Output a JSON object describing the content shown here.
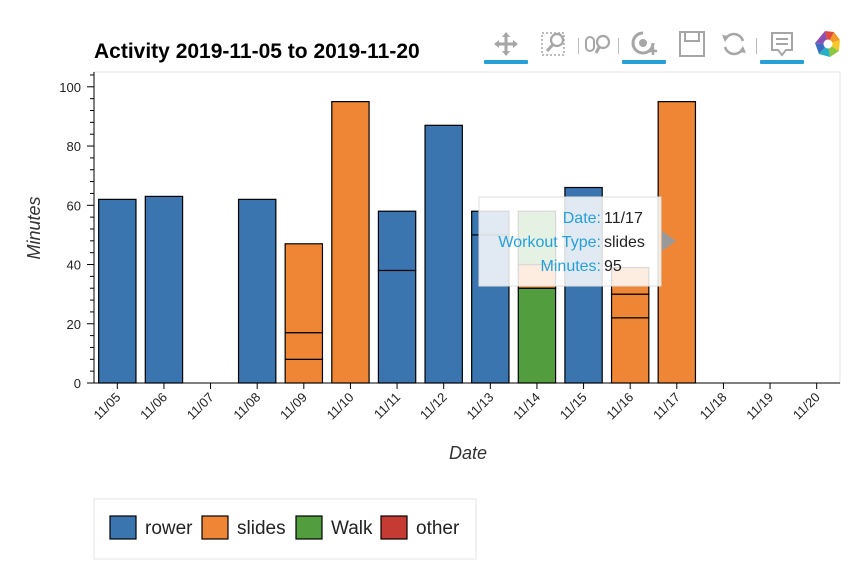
{
  "chart_data": {
    "type": "bar",
    "title": "Activity 2019-11-05 to 2019-11-20",
    "xlabel": "Date",
    "ylabel": "Minutes",
    "ylim": [
      0,
      105
    ],
    "yticks": [
      0,
      20,
      40,
      60,
      80,
      100
    ],
    "categories": [
      "11/05",
      "11/06",
      "11/07",
      "11/08",
      "11/09",
      "11/10",
      "11/11",
      "11/12",
      "11/13",
      "11/14",
      "11/15",
      "11/16",
      "11/17",
      "11/18",
      "11/19",
      "11/20"
    ],
    "stacked": true,
    "segments": [
      {
        "date": "11/05",
        "type": "rower",
        "start": 0,
        "end": 62
      },
      {
        "date": "11/06",
        "type": "rower",
        "start": 0,
        "end": 63
      },
      {
        "date": "11/08",
        "type": "rower",
        "start": 0,
        "end": 62
      },
      {
        "date": "11/09",
        "type": "slides",
        "start": 0,
        "end": 8
      },
      {
        "date": "11/09",
        "type": "slides",
        "start": 8,
        "end": 17
      },
      {
        "date": "11/09",
        "type": "slides",
        "start": 17,
        "end": 47
      },
      {
        "date": "11/10",
        "type": "slides",
        "start": 0,
        "end": 95
      },
      {
        "date": "11/11",
        "type": "rower",
        "start": 0,
        "end": 38
      },
      {
        "date": "11/11",
        "type": "rower",
        "start": 38,
        "end": 58
      },
      {
        "date": "11/12",
        "type": "rower",
        "start": 0,
        "end": 87
      },
      {
        "date": "11/13",
        "type": "rower",
        "start": 0,
        "end": 50
      },
      {
        "date": "11/13",
        "type": "rower",
        "start": 50,
        "end": 58
      },
      {
        "date": "11/14",
        "type": "Walk",
        "start": 0,
        "end": 32
      },
      {
        "date": "11/14",
        "type": "slides",
        "start": 32,
        "end": 40
      },
      {
        "date": "11/14",
        "type": "Walk",
        "start": 40,
        "end": 58
      },
      {
        "date": "11/15",
        "type": "rower",
        "start": 0,
        "end": 66
      },
      {
        "date": "11/16",
        "type": "slides",
        "start": 0,
        "end": 22
      },
      {
        "date": "11/16",
        "type": "slides",
        "start": 22,
        "end": 30
      },
      {
        "date": "11/16",
        "type": "slides",
        "start": 30,
        "end": 39
      },
      {
        "date": "11/17",
        "type": "slides",
        "start": 0,
        "end": 95
      }
    ],
    "legend": {
      "position": "bottom-left",
      "items": [
        {
          "label": "rower",
          "color": "#3a75b0"
        },
        {
          "label": "slides",
          "color": "#ef8636"
        },
        {
          "label": "Walk",
          "color": "#529e3e"
        },
        {
          "label": "other",
          "color": "#c53a32"
        }
      ]
    },
    "tooltip": {
      "anchor_date": "11/17",
      "rows": [
        {
          "key": "Date:",
          "value": "11/17"
        },
        {
          "key": "Workout Type:",
          "value": "slides"
        },
        {
          "key": "Minutes:",
          "value": "95"
        }
      ]
    }
  },
  "toolbar": {
    "tools": [
      {
        "name": "pan-tool",
        "icon": "pan-icon",
        "active": true
      },
      {
        "name": "box-zoom-tool",
        "icon": "box-zoom-icon",
        "active": false
      },
      {
        "name": "wheel-zoom-tool",
        "icon": "wheel-zoom-icon",
        "active": false
      },
      {
        "name": "zoom-in-tool",
        "icon": "zoom-in-icon",
        "active": true
      },
      {
        "name": "save-tool",
        "icon": "save-icon",
        "active": false
      },
      {
        "name": "reset-tool",
        "icon": "reset-icon",
        "active": false
      },
      {
        "name": "hover-tool",
        "icon": "hover-icon",
        "active": true
      },
      {
        "name": "bokeh-logo",
        "icon": "bokeh-logo-icon",
        "active": false
      }
    ]
  }
}
